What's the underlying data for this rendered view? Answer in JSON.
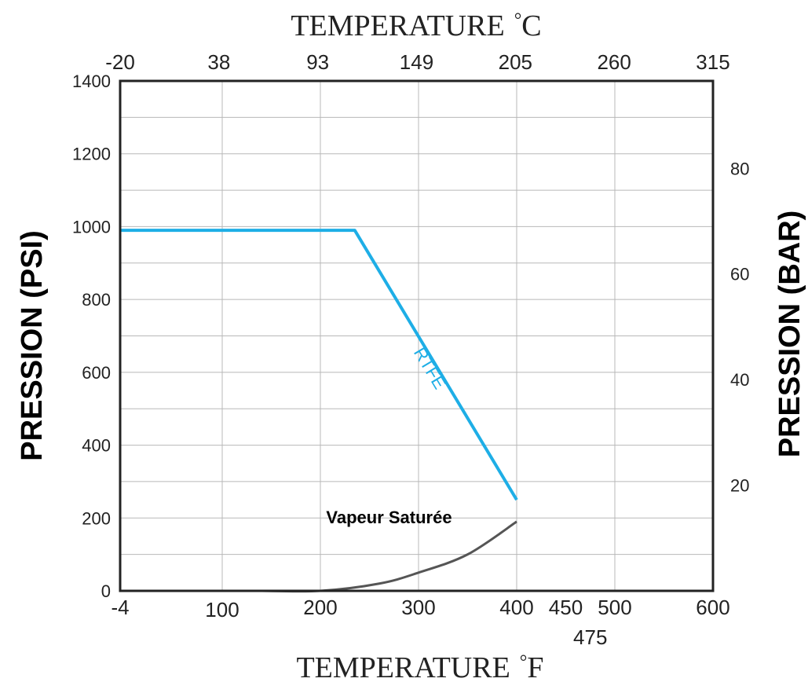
{
  "chart_data": {
    "type": "line",
    "title": "",
    "top_axis": {
      "label": "TEMPERATURE",
      "unit_symbol": "°",
      "unit_letter": "C",
      "ticks": [
        "-20",
        "38",
        "93",
        "149",
        "205",
        "260",
        "315"
      ]
    },
    "bottom_axis": {
      "label": "TEMPERATURE",
      "unit_symbol": "°",
      "unit_letter": "F",
      "range": [
        -4,
        600
      ],
      "ticks": [
        {
          "value": -4,
          "label": "-4"
        },
        {
          "value": 100,
          "label": "100"
        },
        {
          "value": 200,
          "label": "200"
        },
        {
          "value": 300,
          "label": "300"
        },
        {
          "value": 400,
          "label": "400"
        },
        {
          "value": 450,
          "label": "450"
        },
        {
          "value": 475,
          "label": "475"
        },
        {
          "value": 500,
          "label": "500"
        },
        {
          "value": 600,
          "label": "600"
        }
      ]
    },
    "left_axis": {
      "label": "PRESSION (PSI)",
      "range": [
        0,
        1400
      ],
      "ticks": [
        0,
        200,
        400,
        600,
        800,
        1000,
        1200,
        1400
      ]
    },
    "right_axis": {
      "label": "PRESSION (BAR)",
      "ticks": [
        {
          "label": "20",
          "psi": 290
        },
        {
          "label": "40",
          "psi": 580
        },
        {
          "label": "60",
          "psi": 870
        },
        {
          "label": "80",
          "psi": 1160
        }
      ]
    },
    "grid": true,
    "series": [
      {
        "name": "RTFE",
        "color": "#1eaee6",
        "points": [
          [
            -4,
            990
          ],
          [
            235,
            990
          ],
          [
            400,
            250
          ]
        ]
      },
      {
        "name": "Vapeur Saturée",
        "color": "#555555",
        "points": [
          [
            140,
            0
          ],
          [
            200,
            0
          ],
          [
            260,
            20
          ],
          [
            300,
            50
          ],
          [
            350,
            100
          ],
          [
            400,
            190
          ]
        ]
      }
    ]
  }
}
